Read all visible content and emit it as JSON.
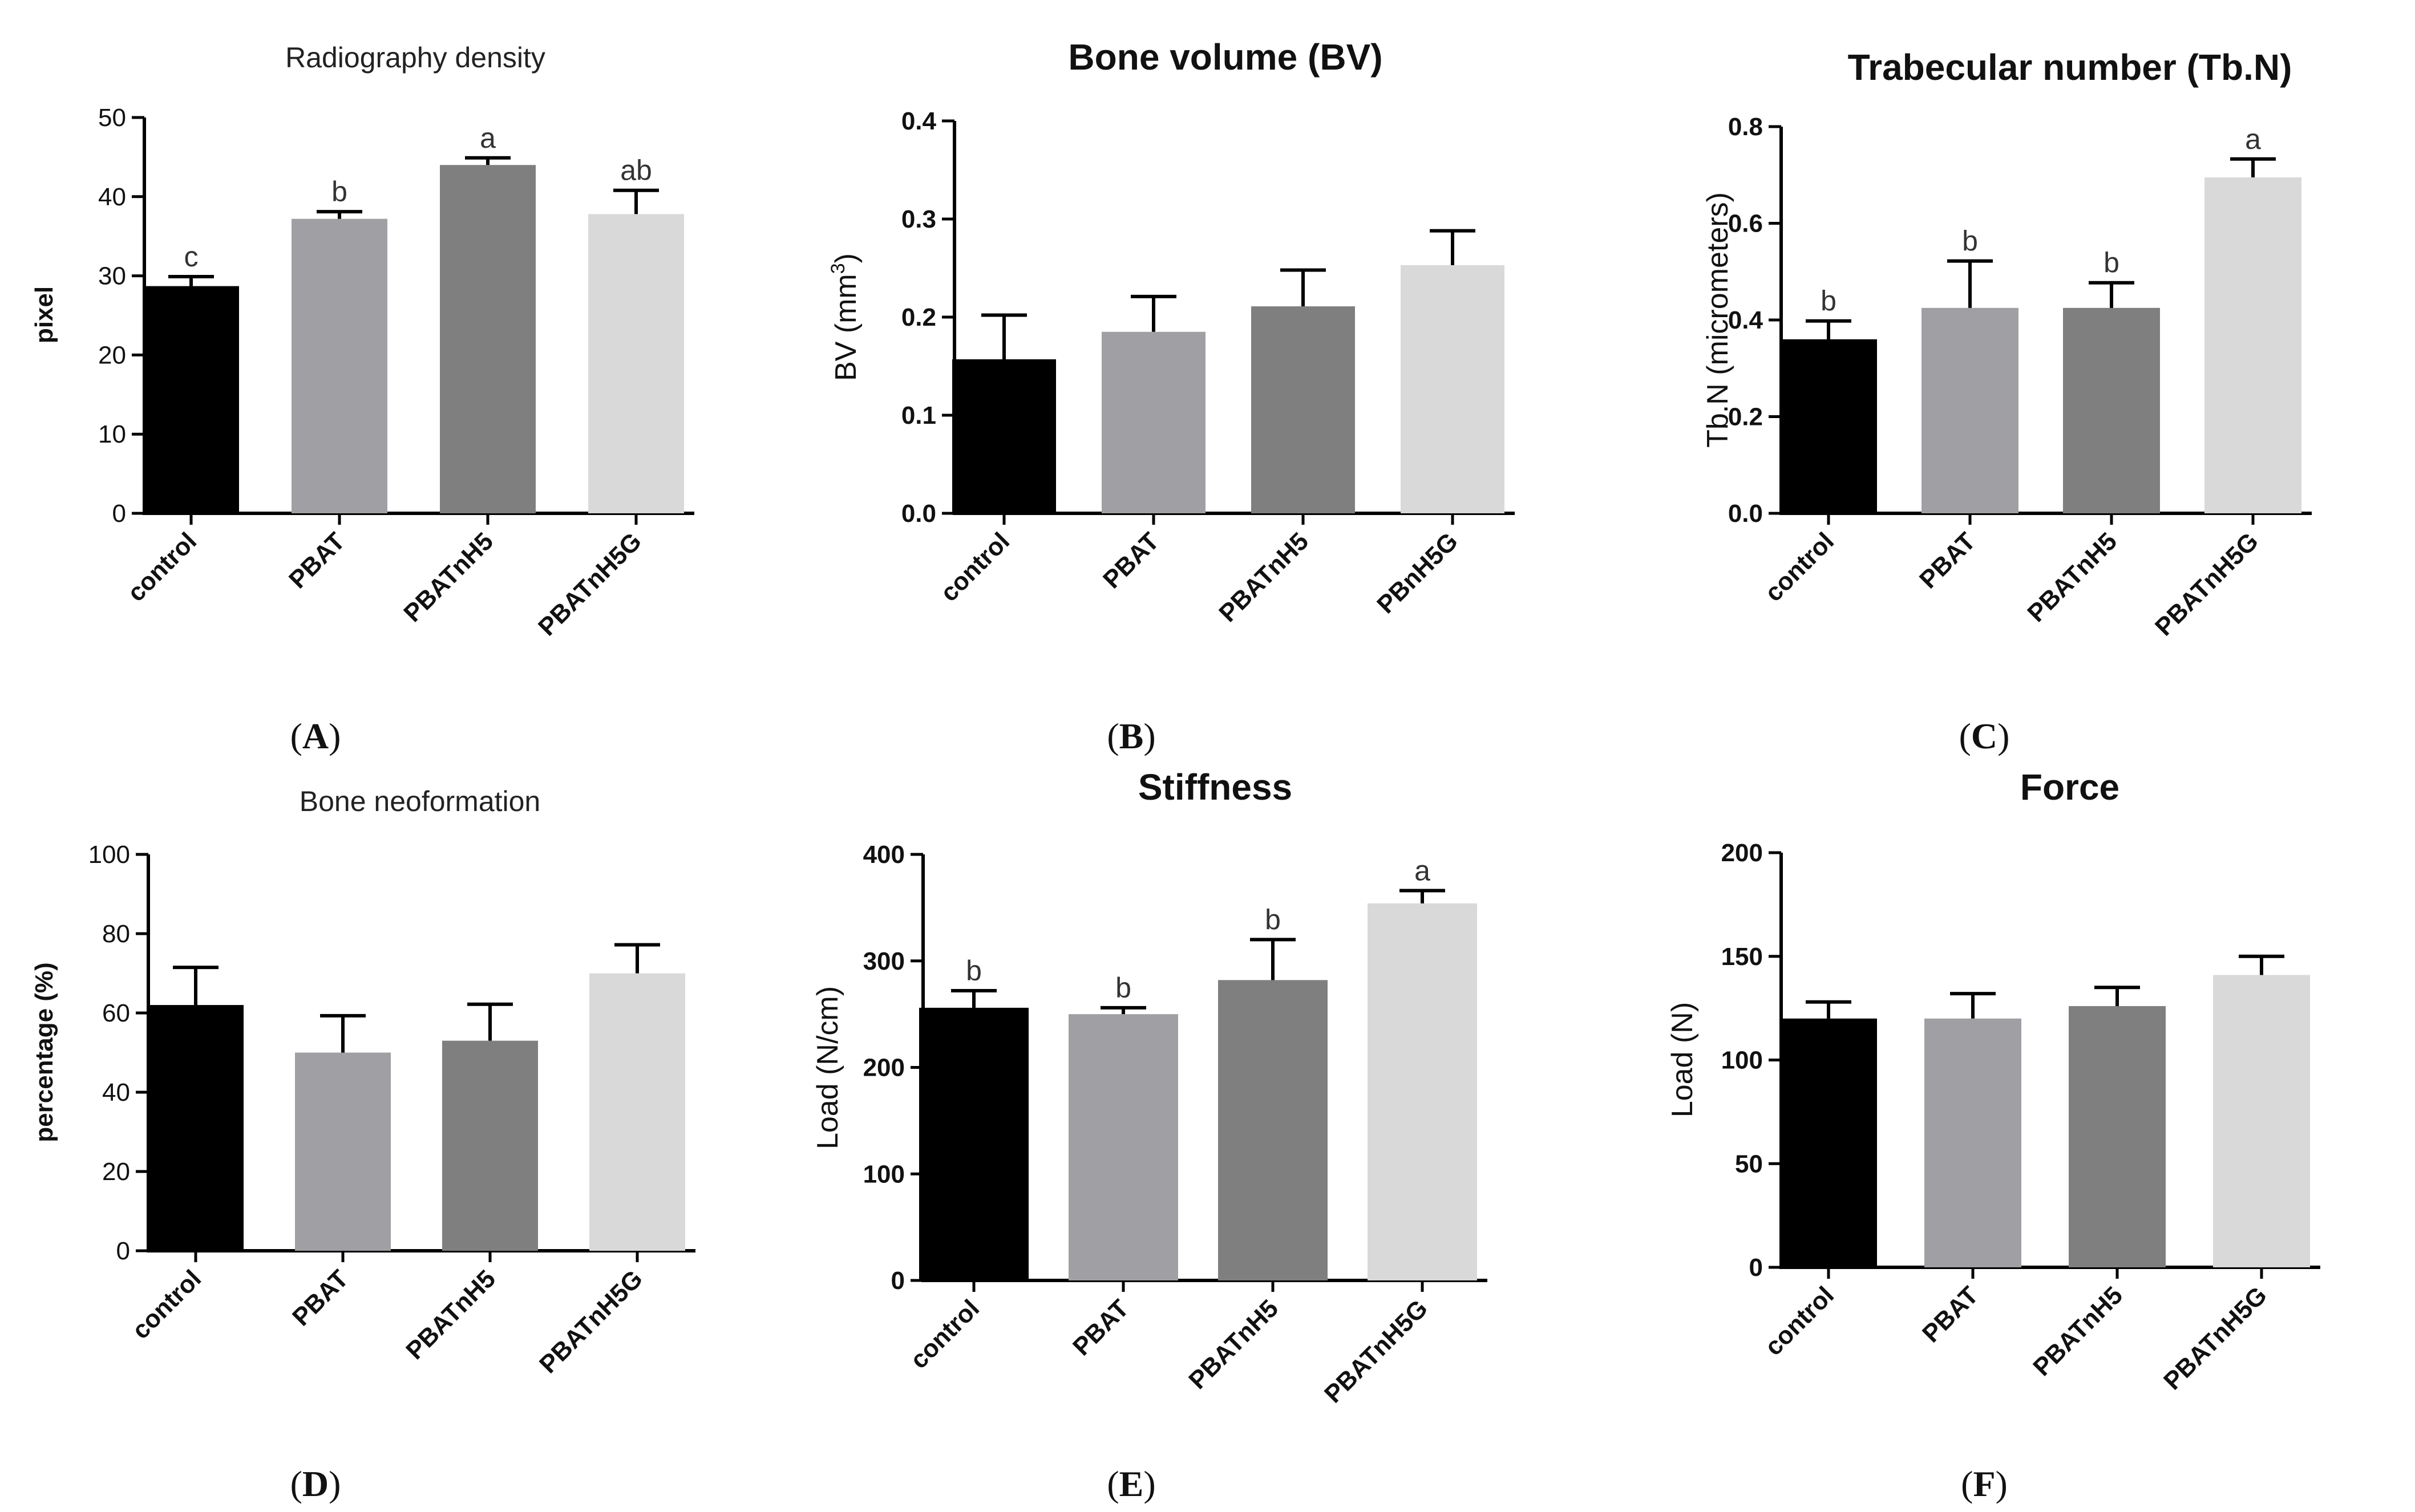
{
  "chart_data": [
    {
      "panel": "A",
      "type": "bar",
      "title": "Radiography density",
      "ylabel": "pixel",
      "ylim": [
        0,
        50
      ],
      "yticks": [
        0,
        10,
        20,
        30,
        40,
        50
      ],
      "ytick_labels": [
        "0",
        "10",
        "20",
        "30",
        "40",
        "50"
      ],
      "categories": [
        "control",
        "PBAT",
        "PBATnH5",
        "PBATnH5G"
      ],
      "values": [
        28.7,
        37.2,
        44.0,
        37.8
      ],
      "errors": [
        1.2,
        0.9,
        0.9,
        3.0
      ],
      "significance": [
        "c",
        "b",
        "a",
        "ab"
      ],
      "colors": [
        "#000000",
        "#a0a0a4",
        "#7f7f7f",
        "#d9d9d9"
      ]
    },
    {
      "panel": "B",
      "type": "bar",
      "title": "Bone volume (BV)",
      "ylabel_main": "BV (mm",
      "ylabel_sup": "3",
      "ylabel_end": ")",
      "ylim": [
        0,
        0.4
      ],
      "yticks": [
        0,
        0.1,
        0.2,
        0.3,
        0.4
      ],
      "ytick_labels": [
        "0.0",
        "0.1",
        "0.2",
        "0.3",
        "0.4"
      ],
      "categories": [
        "control",
        "PBAT",
        "PBATnH5",
        "PBnH5G"
      ],
      "values": [
        0.157,
        0.185,
        0.211,
        0.253
      ],
      "errors": [
        0.045,
        0.036,
        0.037,
        0.035
      ],
      "significance": [
        "",
        "",
        "",
        ""
      ],
      "colors": [
        "#000000",
        "#a0a0a4",
        "#7f7f7f",
        "#d9d9d9"
      ]
    },
    {
      "panel": "C",
      "type": "bar",
      "title": "Trabecular number (Tb.N)",
      "ylabel": "Tb.N (micrometers)",
      "ylim": [
        0,
        0.8
      ],
      "yticks": [
        0,
        0.2,
        0.4,
        0.6,
        0.8
      ],
      "ytick_labels": [
        "0.0",
        "0.2",
        "0.4",
        "0.6",
        "0.8"
      ],
      "categories": [
        "control",
        "PBAT",
        "PBATnH5",
        "PBATnH5G"
      ],
      "values": [
        0.36,
        0.425,
        0.425,
        0.695
      ],
      "errors": [
        0.038,
        0.097,
        0.052,
        0.038
      ],
      "significance": [
        "b",
        "b",
        "b",
        "a"
      ],
      "colors": [
        "#000000",
        "#a0a0a4",
        "#7f7f7f",
        "#d9d9d9"
      ]
    },
    {
      "panel": "D",
      "type": "bar",
      "title": "Bone neoformation",
      "ylabel": "percentage (%)",
      "ylim": [
        0,
        100
      ],
      "yticks": [
        0,
        20,
        40,
        60,
        80,
        100
      ],
      "ytick_labels": [
        "0",
        "20",
        "40",
        "60",
        "80",
        "100"
      ],
      "categories": [
        "control",
        "PBAT",
        "PBATnH5",
        "PBATnH5G"
      ],
      "values": [
        62,
        50,
        53,
        70
      ],
      "errors": [
        9.5,
        9.3,
        9.2,
        7.2
      ],
      "significance": [
        "",
        "",
        "",
        ""
      ],
      "colors": [
        "#000000",
        "#a0a0a4",
        "#7f7f7f",
        "#d9d9d9"
      ]
    },
    {
      "panel": "E",
      "type": "bar",
      "title": "Stiffness",
      "ylabel": "Load (N/cm)",
      "ylim": [
        0,
        400
      ],
      "yticks": [
        0,
        100,
        200,
        300,
        400
      ],
      "ytick_labels": [
        "0",
        "100",
        "200",
        "300",
        "400"
      ],
      "categories": [
        "control",
        "PBAT",
        "PBATnH5",
        "PBATnH5G"
      ],
      "values": [
        256,
        250,
        282,
        354
      ],
      "errors": [
        16,
        6,
        38,
        12
      ],
      "significance": [
        "b",
        "b",
        "b",
        "a"
      ],
      "colors": [
        "#000000",
        "#a0a0a4",
        "#7f7f7f",
        "#d9d9d9"
      ]
    },
    {
      "panel": "F",
      "type": "bar",
      "title": "Force",
      "ylabel": "Load (N)",
      "ylim": [
        0,
        200
      ],
      "yticks": [
        0,
        50,
        100,
        150,
        200
      ],
      "ytick_labels": [
        "0",
        "50",
        "100",
        "150",
        "200"
      ],
      "categories": [
        "control",
        "PBAT",
        "PBATnH5",
        "PBATnH5G"
      ],
      "values": [
        120,
        120,
        126,
        141
      ],
      "errors": [
        8,
        12,
        9,
        9
      ],
      "significance": [
        "",
        "",
        "",
        ""
      ],
      "colors": [
        "#000000",
        "#a0a0a4",
        "#7f7f7f",
        "#d9d9d9"
      ]
    }
  ]
}
